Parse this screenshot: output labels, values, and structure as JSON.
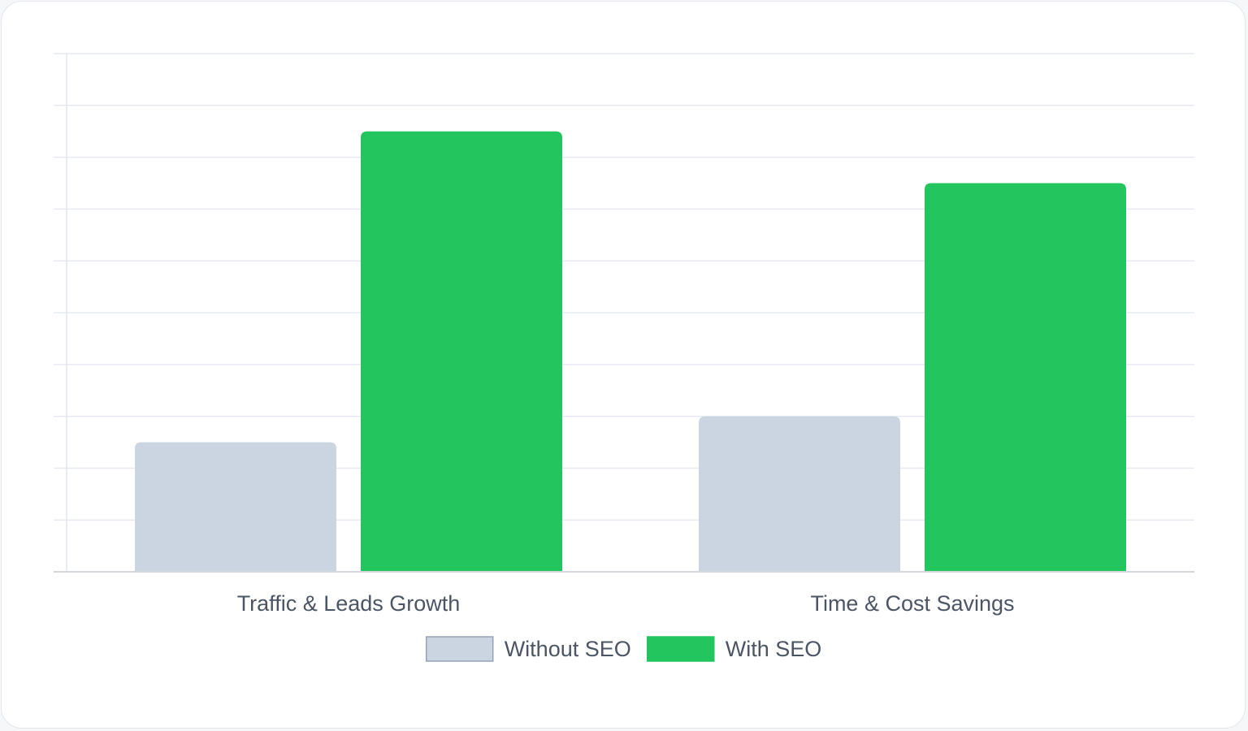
{
  "chart_data": {
    "type": "bar",
    "title": "",
    "xlabel": "",
    "ylabel": "",
    "categories": [
      "Traffic & Leads Growth",
      "Time & Cost Savings"
    ],
    "series": [
      {
        "name": "Without SEO",
        "color": "#cbd5e1",
        "values": [
          25,
          30
        ]
      },
      {
        "name": "With SEO",
        "color": "#22c55e",
        "values": [
          85,
          75
        ]
      }
    ],
    "ylim": [
      0,
      100
    ],
    "grid": true,
    "y_tick_labels_visible": false,
    "legend_position": "bottom-center"
  }
}
